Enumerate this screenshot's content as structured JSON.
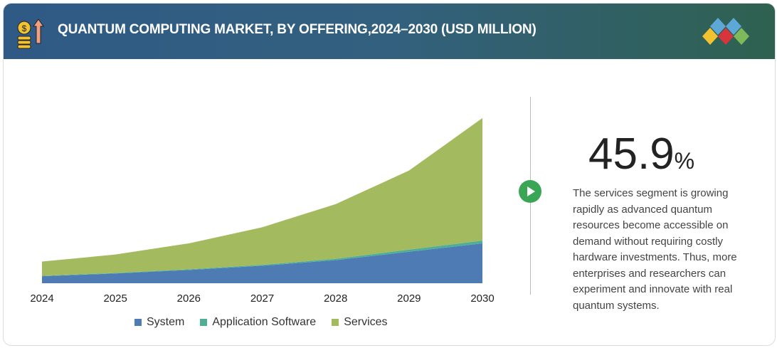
{
  "header": {
    "title": "QUANTUM COMPUTING MARKET, BY OFFERING,2024–2030 (USD MILLION)"
  },
  "chart_data": {
    "type": "area",
    "stacked": true,
    "title": "QUANTUM COMPUTING MARKET, BY OFFERING,2024–2030 (USD MILLION)",
    "xlabel": "",
    "ylabel": "",
    "categories": [
      "2024",
      "2025",
      "2026",
      "2027",
      "2028",
      "2029",
      "2030"
    ],
    "series": [
      {
        "name": "System",
        "color": "#4f7bb5",
        "values": [
          10,
          14,
          19,
          25,
          33,
          45,
          57
        ]
      },
      {
        "name": "Application Software",
        "color": "#4fae96",
        "values": [
          0.5,
          0.7,
          1,
          1.3,
          2,
          3,
          4
        ]
      },
      {
        "name": "Services",
        "color": "#a3bb5e",
        "values": [
          20.5,
          26.3,
          37,
          53.7,
          78,
          113,
          175
        ]
      }
    ],
    "ylim": [
      0,
      240
    ],
    "grid": false,
    "legend_position": "bottom",
    "note": "values are relative estimates; no y-axis shown"
  },
  "highlight": {
    "value": "45.9",
    "unit": "%",
    "text": "The services segment is growing rapidly as advanced quantum resources become accessible on demand without requiring costly hardware investments. Thus, more enterprises and researchers can experiment and innovate with real quantum systems."
  }
}
